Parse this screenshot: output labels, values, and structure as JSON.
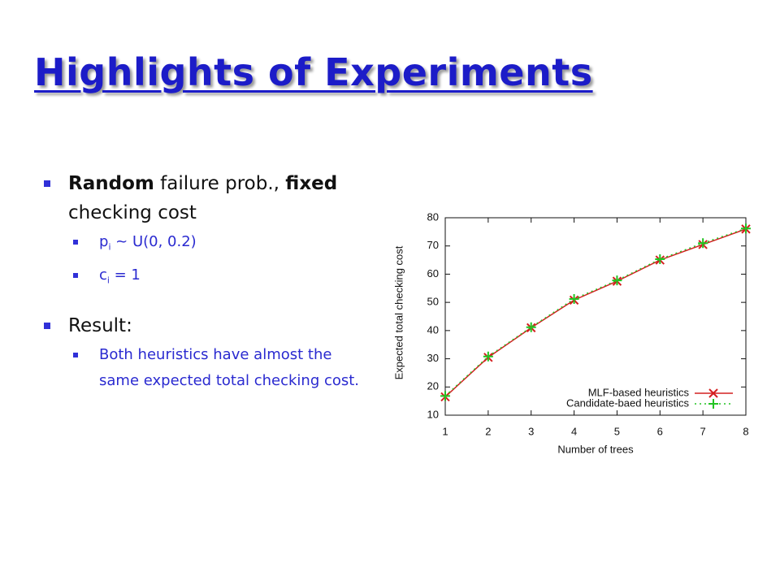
{
  "slide": {
    "title": "Highlights of Experiments",
    "bullets": [
      {
        "level": 1,
        "runs": [
          {
            "text": "Random",
            "bold": true
          },
          {
            "text": " failure prob., "
          },
          {
            "text": "fixed",
            "bold": true
          },
          {
            "text": " checking cost"
          }
        ]
      },
      {
        "level": 2,
        "runs": [
          {
            "text": "p"
          },
          {
            "text": "i",
            "sub": true
          },
          {
            "text": " ~ U(0, 0.2)"
          }
        ]
      },
      {
        "level": 2,
        "runs": [
          {
            "text": "c"
          },
          {
            "text": "i",
            "sub": true
          },
          {
            "text": " = 1"
          }
        ]
      },
      {
        "level": 1,
        "runs": [
          {
            "text": "Result:"
          }
        ]
      },
      {
        "level": 2,
        "runs": [
          {
            "text": "Both heuristics have almost the same expected total checking cost."
          }
        ]
      }
    ]
  },
  "chart_data": {
    "type": "line",
    "x_label": "Number of trees",
    "y_label": "Expected total checking cost",
    "x": [
      1,
      2,
      3,
      4,
      5,
      6,
      7,
      8
    ],
    "series": [
      {
        "name": "MLF-based heuristics",
        "color": "#d42020",
        "marker": "x",
        "dash": "solid",
        "values": [
          16.5,
          30.5,
          41,
          50.8,
          57.5,
          65,
          70.5,
          76
        ]
      },
      {
        "name": "Candidate-baed heuristics",
        "color": "#22c422",
        "marker": "+",
        "dash": "dotted",
        "values": [
          16.8,
          30.8,
          41.2,
          51.2,
          57.8,
          65.3,
          71,
          76.2
        ]
      }
    ],
    "xlim": [
      1,
      8
    ],
    "ylim": [
      10,
      80
    ],
    "xticks": [
      1,
      2,
      3,
      4,
      5,
      6,
      7,
      8
    ],
    "yticks": [
      10,
      20,
      30,
      40,
      50,
      60,
      70,
      80
    ],
    "legend": "lower right"
  }
}
